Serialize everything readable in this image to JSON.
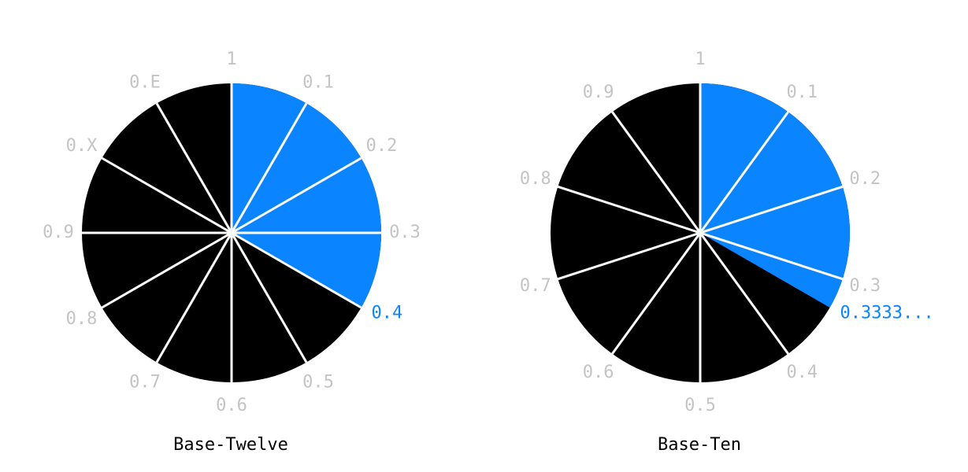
{
  "diagrams": [
    {
      "labels": [
        "1",
        "0.1",
        "0.2",
        "0.3",
        null,
        "0.5",
        "0.6",
        "0.7",
        "0.8",
        "0.9",
        "0.X",
        "0.E"
      ],
      "result": "0.4",
      "caption": "Base-Twelve"
    },
    {
      "labels": [
        "1",
        "0.1",
        "0.2",
        "0.3",
        "0.4",
        "0.5",
        "0.6",
        "0.7",
        "0.8",
        "0.9"
      ],
      "result": "0.3333...",
      "caption": "Base-Ten"
    }
  ]
}
